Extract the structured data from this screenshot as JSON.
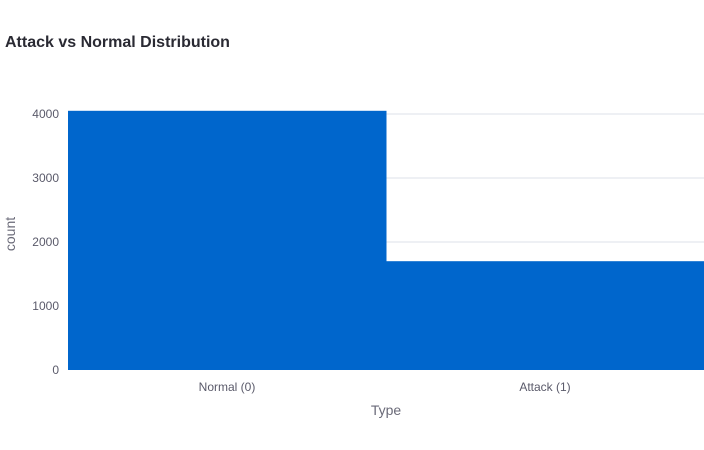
{
  "chart_data": {
    "type": "bar",
    "title": "Attack vs Normal Distribution",
    "xlabel": "Type",
    "ylabel": "count",
    "categories": [
      "Normal (0)",
      "Attack (1)"
    ],
    "values": [
      4050,
      1700
    ],
    "yticks": [
      "0",
      "1000",
      "2000",
      "3000",
      "4000"
    ],
    "ylim": [
      0,
      4250
    ],
    "grid": true,
    "bar_color": "#0066cc",
    "grid_color": "#eef0f4"
  }
}
